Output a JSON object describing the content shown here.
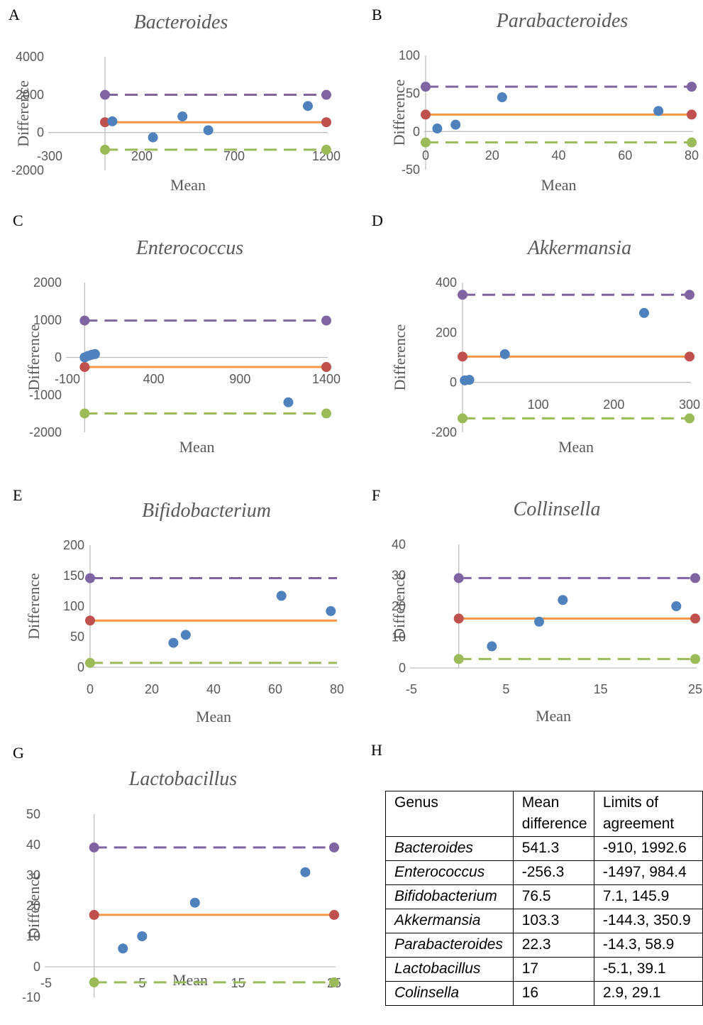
{
  "colors": {
    "points": "#4f81bd",
    "mean_line": "#f79646",
    "mean_marker": "#c0504d",
    "upper_loa": "#8064a2",
    "lower_loa": "#9bbb59",
    "axis": "#bfbfbf",
    "text": "#595959"
  },
  "chart_data": [
    {
      "panel": "A",
      "type": "scatter",
      "title": "Bacteroides",
      "xlabel": "Mean",
      "ylabel": "Difference",
      "xlim": [
        -300,
        1200
      ],
      "ylim": [
        -2000,
        4000
      ],
      "xticks": [
        -300,
        200,
        700,
        1200
      ],
      "yticks": [
        -2000,
        0,
        2000,
        4000
      ],
      "points": [
        [
          40,
          590
        ],
        [
          260,
          -260
        ],
        [
          420,
          850
        ],
        [
          560,
          120
        ],
        [
          1100,
          1400
        ]
      ],
      "mean_line": 541.3,
      "upper_loa": 1992.6,
      "lower_loa": -910,
      "hlines_from": 0,
      "hlines_to": 1200
    },
    {
      "panel": "B",
      "type": "scatter",
      "title": "Parabacteroides",
      "xlabel": "Mean",
      "ylabel": "Difference",
      "xlim": [
        0,
        80
      ],
      "ylim": [
        -50,
        100
      ],
      "xticks": [
        0,
        20,
        40,
        60,
        80
      ],
      "yticks": [
        -50,
        0,
        50,
        100
      ],
      "points": [
        [
          3.5,
          4
        ],
        [
          9,
          9
        ],
        [
          23,
          45
        ],
        [
          70,
          27
        ]
      ],
      "mean_line": 22.3,
      "upper_loa": 58.9,
      "lower_loa": -14.3,
      "hlines_from": 0,
      "hlines_to": 80
    },
    {
      "panel": "C",
      "type": "scatter",
      "title": "Enterococcus",
      "xlabel": "Mean",
      "ylabel": "Difference",
      "xlim": [
        -100,
        1400
      ],
      "ylim": [
        -2000,
        2000
      ],
      "xticks": [
        -100,
        400,
        900,
        1400
      ],
      "yticks": [
        -2000,
        -1000,
        0,
        1000,
        2000
      ],
      "points": [
        [
          0,
          0
        ],
        [
          20,
          40
        ],
        [
          40,
          70
        ],
        [
          60,
          90
        ],
        [
          1180,
          -1200
        ]
      ],
      "mean_line": -256.3,
      "upper_loa": 984.4,
      "lower_loa": -1497,
      "hlines_from": 0,
      "hlines_to": 1400
    },
    {
      "panel": "D",
      "type": "scatter",
      "title": "Akkermansia",
      "xlabel": "Mean",
      "ylabel": "Difference",
      "xlim": [
        0,
        300
      ],
      "ylim": [
        -200,
        400
      ],
      "xticks": [
        100,
        200,
        300
      ],
      "yticks": [
        -200,
        0,
        200,
        400
      ],
      "points": [
        [
          3,
          8
        ],
        [
          9,
          10
        ],
        [
          56,
          113
        ],
        [
          240,
          278
        ]
      ],
      "mean_line": 103.3,
      "upper_loa": 350.9,
      "lower_loa": -144.3,
      "hlines_from": 0,
      "hlines_to": 300
    },
    {
      "panel": "E",
      "type": "scatter",
      "title": "Bifidobacterium",
      "xlabel": "Mean",
      "ylabel": "Difference",
      "xlim": [
        0,
        80
      ],
      "ylim": [
        0,
        200
      ],
      "xticks": [
        0,
        20,
        40,
        60,
        80
      ],
      "yticks": [
        0,
        50,
        100,
        150,
        200
      ],
      "points": [
        [
          27,
          40
        ],
        [
          31,
          53
        ],
        [
          62,
          117
        ],
        [
          78,
          92
        ]
      ],
      "mean_line": 76.5,
      "upper_loa": 145.9,
      "lower_loa": 7.1,
      "hlines_from": 0,
      "hlines_to": 80
    },
    {
      "panel": "F",
      "type": "scatter",
      "title": "Collinsella",
      "xlabel": "Mean",
      "ylabel": "Difference",
      "xlim": [
        -5,
        25
      ],
      "ylim": [
        0,
        40
      ],
      "xticks": [
        -5,
        5,
        15,
        25
      ],
      "yticks": [
        0,
        10,
        20,
        30,
        40
      ],
      "points": [
        [
          3.5,
          7
        ],
        [
          8.5,
          15
        ],
        [
          11,
          22
        ],
        [
          23,
          20
        ]
      ],
      "mean_line": 16,
      "upper_loa": 29.1,
      "lower_loa": 2.9,
      "hlines_from": 0,
      "hlines_to": 25
    },
    {
      "panel": "G",
      "type": "scatter",
      "title": "Lactobacillus",
      "xlabel": "Mean",
      "ylabel": "Difference",
      "xlim": [
        -5,
        25
      ],
      "ylim": [
        -10,
        50
      ],
      "xticks": [
        -5,
        5,
        15,
        25
      ],
      "yticks": [
        -10,
        0,
        10,
        20,
        30,
        40,
        50
      ],
      "points": [
        [
          3,
          6
        ],
        [
          5,
          10
        ],
        [
          10.5,
          21
        ],
        [
          22,
          31
        ]
      ],
      "mean_line": 17,
      "upper_loa": 39.1,
      "lower_loa": -5.1,
      "hlines_from": 0,
      "hlines_to": 25
    }
  ],
  "table": {
    "panel": "H",
    "headers": [
      "Genus",
      "Mean difference",
      "Limits of agreement"
    ],
    "rows": [
      [
        "Bacteroides",
        "541.3",
        "-910, 1992.6"
      ],
      [
        "Enterococcus",
        "-256.3",
        "-1497, 984.4"
      ],
      [
        "Bifidobacterium",
        "76.5",
        "7.1, 145.9"
      ],
      [
        "Akkermansia",
        "103.3",
        "-144.3, 350.9"
      ],
      [
        "Parabacteroides",
        "22.3",
        "-14.3, 58.9"
      ],
      [
        "Lactobacillus",
        "17",
        "-5.1, 39.1"
      ],
      [
        "Colinsella",
        "16",
        "2.9, 29.1"
      ]
    ]
  }
}
